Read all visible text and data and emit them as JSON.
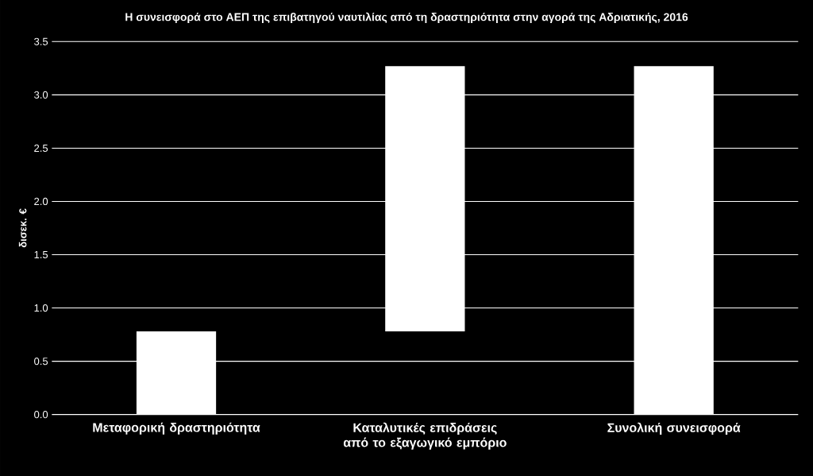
{
  "chart_data": {
    "type": "bar",
    "title": "Η συνεισφορά στο ΑΕΠ της επιβατηγού ναυτιλίας από τη δραστηριότητα στην αγορά της Αδριατικής, 2016",
    "ylabel": "δισεκ. €",
    "categories": [
      "Μεταφορική δραστηριότητα",
      "Καταλυτικές επιδράσεις από το εξαγωγικό εμπόριο",
      "Συνολική συνεισφορά"
    ],
    "values": [
      0.78,
      2.49,
      3.27
    ],
    "base": [
      0,
      0.78,
      0
    ],
    "color": "#ffffff",
    "ylim": [
      0,
      3.5
    ],
    "yticks": [
      {
        "value": 0,
        "label": "0.0"
      },
      {
        "value": 0.5,
        "label": "0.5"
      },
      {
        "value": 1,
        "label": "1.0"
      },
      {
        "value": 1.5,
        "label": "1.5"
      },
      {
        "value": 2,
        "label": "2.0"
      },
      {
        "value": 2.5,
        "label": "2.5"
      },
      {
        "value": 3,
        "label": "3.0"
      },
      {
        "value": 3.5,
        "label": "3.5"
      }
    ],
    "grid": "y"
  }
}
